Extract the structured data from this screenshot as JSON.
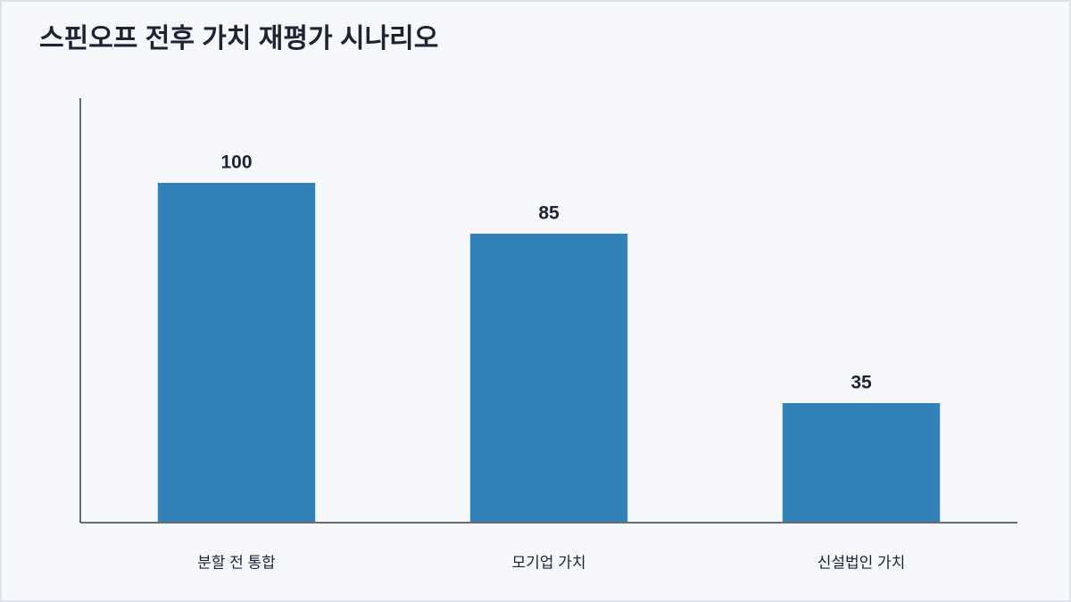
{
  "chart_data": {
    "type": "bar",
    "title": "스핀오프 전후 가치 재평가 시나리오",
    "categories": [
      "분할 전 통합",
      "모기업 가치",
      "신설법인 가치"
    ],
    "values": [
      100,
      85,
      35
    ],
    "color": "#3381b9",
    "ylim": [
      0,
      125
    ]
  }
}
